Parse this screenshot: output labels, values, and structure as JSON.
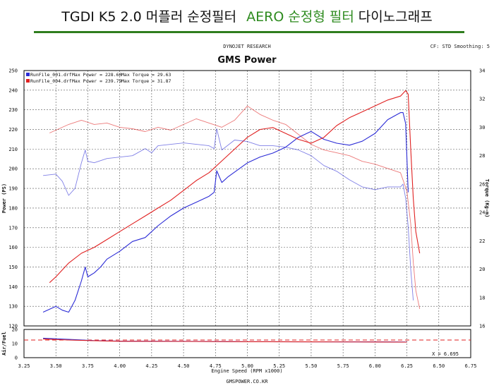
{
  "header": {
    "prefix": "TGDI  K5 2.0 머플러 순정필터",
    "aero": "AERO 순정형 필터",
    "suffix": "다이노그래프"
  },
  "dyno": {
    "vendor": "DYNOJET RESEARCH",
    "settings": "CF: STD  Smoothing: 5",
    "title": "GMS Power",
    "footer": "GMSPOWER.CO.KR",
    "cursor": "X = 6.695"
  },
  "legend": [
    {
      "file": "RunFile_001.drf",
      "max_power": "Max Power = 228.60",
      "max_torque": "Max Torque = 29.63",
      "color": "#2b2bd6"
    },
    {
      "file": "RunFile_004.drf",
      "max_power": "Max Power = 239.79",
      "max_torque": "Max Torque = 31.87",
      "color": "#e02020"
    }
  ],
  "chart_data": [
    {
      "type": "line",
      "title": "GMS Power",
      "xlabel": "Engine Speed (RPM x1000)",
      "ylabel": "Power (PS)",
      "y2label": "Torque (Kg-m)",
      "xlim": [
        3.25,
        6.75
      ],
      "ylim": [
        120,
        250
      ],
      "y2lim": [
        16,
        34
      ],
      "x_ticks": [
        "3.25",
        "3.50",
        "3.75",
        "4.00",
        "4.25",
        "4.50",
        "4.75",
        "5.00",
        "5.25",
        "5.50",
        "5.75",
        "6.00",
        "6.25",
        "6.50",
        "6.75"
      ],
      "y_ticks": [
        "120",
        "130",
        "140",
        "150",
        "160",
        "170",
        "180",
        "190",
        "200",
        "210",
        "220",
        "230",
        "240",
        "250"
      ],
      "y2_ticks": [
        "16",
        "18",
        "20",
        "22",
        "24",
        "26",
        "28",
        "30",
        "32",
        "34"
      ],
      "grid": true,
      "series": [
        {
          "name": "RunFile_001.drf",
          "quantity": "power",
          "color": "#2b2bd6",
          "x": [
            3.4,
            3.5,
            3.55,
            3.6,
            3.65,
            3.7,
            3.73,
            3.75,
            3.8,
            3.85,
            3.9,
            4.0,
            4.1,
            4.2,
            4.3,
            4.4,
            4.5,
            4.6,
            4.7,
            4.74,
            4.76,
            4.8,
            4.85,
            5.0,
            5.1,
            5.2,
            5.3,
            5.4,
            5.5,
            5.6,
            5.7,
            5.8,
            5.9,
            6.0,
            6.1,
            6.2,
            6.22,
            6.24,
            6.26
          ],
          "y": [
            127,
            130,
            128,
            127,
            133,
            143,
            150,
            145,
            147,
            150,
            154,
            158,
            163,
            165,
            171,
            176,
            180,
            183,
            186,
            188,
            199,
            193,
            196,
            203,
            206,
            208,
            211,
            216,
            219,
            215,
            213,
            212,
            214,
            218,
            225,
            228.6,
            228.6,
            223,
            188
          ]
        },
        {
          "name": "RunFile_004.drf",
          "quantity": "power",
          "color": "#e02020",
          "x": [
            3.45,
            3.5,
            3.6,
            3.7,
            3.8,
            3.9,
            4.0,
            4.1,
            4.2,
            4.3,
            4.4,
            4.5,
            4.6,
            4.7,
            4.8,
            4.9,
            5.0,
            5.1,
            5.2,
            5.3,
            5.4,
            5.5,
            5.6,
            5.7,
            5.8,
            5.9,
            6.0,
            6.1,
            6.2,
            6.24,
            6.26,
            6.28,
            6.3,
            6.32,
            6.35
          ],
          "y": [
            142,
            145,
            152,
            157,
            160,
            164,
            168,
            172,
            176,
            180,
            184,
            189,
            194,
            198,
            204,
            210,
            216,
            220,
            221,
            218,
            215,
            213,
            216,
            222,
            226,
            229,
            232,
            235,
            237,
            239.8,
            238,
            210,
            185,
            168,
            157
          ]
        },
        {
          "name": "RunFile_001.drf",
          "quantity": "torque",
          "color": "#2b2bd6",
          "x": [
            3.4,
            3.5,
            3.55,
            3.6,
            3.65,
            3.7,
            3.73,
            3.75,
            3.8,
            3.9,
            4.0,
            4.1,
            4.2,
            4.25,
            4.3,
            4.4,
            4.5,
            4.6,
            4.7,
            4.74,
            4.76,
            4.8,
            4.9,
            5.0,
            5.1,
            5.2,
            5.3,
            5.4,
            5.5,
            5.6,
            5.7,
            5.8,
            5.9,
            6.0,
            6.1,
            6.2,
            6.22,
            6.24,
            6.26,
            6.28,
            6.3
          ],
          "y": [
            26.6,
            26.7,
            26.2,
            25.2,
            25.7,
            27.5,
            28.4,
            27.6,
            27.5,
            27.8,
            27.9,
            28.0,
            28.5,
            28.2,
            28.7,
            28.8,
            28.9,
            28.8,
            28.7,
            28.5,
            29.9,
            28.4,
            29.1,
            29.0,
            28.7,
            28.7,
            28.6,
            28.4,
            28.0,
            27.3,
            26.9,
            26.3,
            25.8,
            25.6,
            25.8,
            25.8,
            26.0,
            25.0,
            23.0,
            20.0,
            17.8
          ]
        },
        {
          "name": "RunFile_004.drf",
          "quantity": "torque",
          "color": "#e02020",
          "x": [
            3.45,
            3.5,
            3.6,
            3.7,
            3.8,
            3.9,
            4.0,
            4.1,
            4.2,
            4.3,
            4.4,
            4.5,
            4.6,
            4.7,
            4.8,
            4.9,
            5.0,
            5.05,
            5.1,
            5.2,
            5.3,
            5.4,
            5.5,
            5.6,
            5.7,
            5.8,
            5.9,
            6.0,
            6.1,
            6.2,
            6.25,
            6.28,
            6.3,
            6.32,
            6.35
          ],
          "y": [
            29.6,
            29.8,
            30.2,
            30.5,
            30.2,
            30.3,
            30.0,
            29.9,
            29.7,
            30.0,
            29.8,
            30.2,
            30.6,
            30.3,
            30.0,
            30.5,
            31.5,
            31.2,
            30.9,
            30.5,
            30.2,
            29.5,
            28.8,
            28.4,
            28.2,
            28.0,
            27.6,
            27.4,
            27.1,
            26.8,
            25.5,
            23.2,
            20.5,
            18.5,
            17.2
          ]
        }
      ]
    },
    {
      "type": "line",
      "ylabel": "Air/Fuel",
      "xlim": [
        3.25,
        6.75
      ],
      "ylim": [
        0,
        20
      ],
      "y_ticks": [
        "0",
        "10",
        "20"
      ],
      "reference_line": 12.5,
      "series": [
        {
          "name": "RunFile_001.drf",
          "color": "#2b2bd6",
          "x": [
            3.4,
            3.6,
            3.8,
            4.0,
            4.5,
            5.0,
            5.5,
            6.0,
            6.25
          ],
          "y": [
            13.8,
            13.0,
            12.1,
            11.7,
            11.6,
            11.3,
            11.2,
            11.2,
            11.1
          ]
        },
        {
          "name": "RunFile_004.drf",
          "color": "#e02020",
          "x": [
            3.4,
            3.6,
            3.8,
            4.0,
            4.5,
            5.0,
            5.5,
            6.0,
            6.25
          ],
          "y": [
            13.2,
            12.5,
            12.0,
            11.6,
            11.5,
            11.3,
            11.2,
            11.1,
            11.0
          ]
        }
      ]
    }
  ]
}
